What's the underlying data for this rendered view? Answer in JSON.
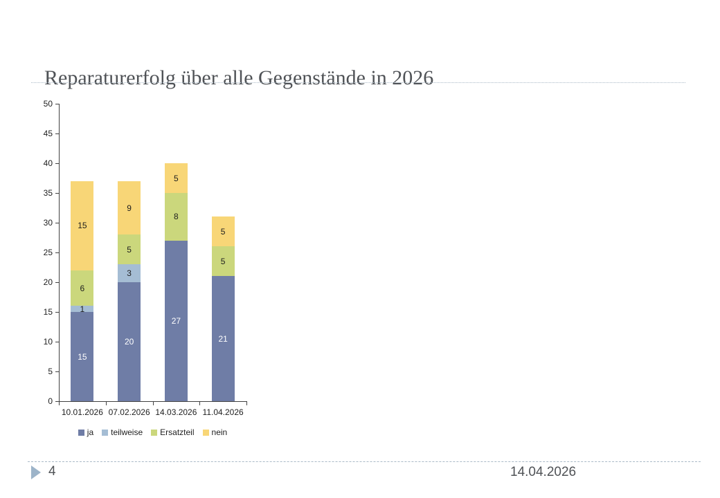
{
  "slide": {
    "title": "Reparaturerfolg über alle Gegenstände in 2026",
    "footer": {
      "page_number": "4",
      "date": "14.04.2026",
      "marker_icon": "triangle-right-icon"
    }
  },
  "colors": {
    "title_text": "#4f5256",
    "rule": "#a9b9c6",
    "axis": "#404040",
    "chart_text": "#1d1d1d",
    "footer_marker": "#9db4c9"
  },
  "chart_data": {
    "type": "bar",
    "stacked": true,
    "title": "",
    "xlabel": "",
    "ylabel": "",
    "categories": [
      "10.01.2026",
      "07.02.2026",
      "14.03.2026",
      "11.04.2026"
    ],
    "series": [
      {
        "name": "ja",
        "color": "#6f7da6",
        "label_color": "#ffffff",
        "values": [
          15,
          20,
          27,
          21
        ]
      },
      {
        "name": "teilweise",
        "color": "#a5bdd4",
        "label_color": "#1d1d1d",
        "values": [
          1,
          3,
          0,
          0
        ]
      },
      {
        "name": "Ersatzteil",
        "color": "#cbd77c",
        "label_color": "#1d1d1d",
        "values": [
          6,
          5,
          8,
          5
        ]
      },
      {
        "name": "nein",
        "color": "#f8d677",
        "label_color": "#1d1d1d",
        "values": [
          15,
          9,
          5,
          5
        ]
      }
    ],
    "totals": [
      37,
      37,
      40,
      31
    ],
    "ylim": [
      0,
      50
    ],
    "ytick_step": 5,
    "grid": false,
    "legend_position": "bottom",
    "data_labels": true
  }
}
